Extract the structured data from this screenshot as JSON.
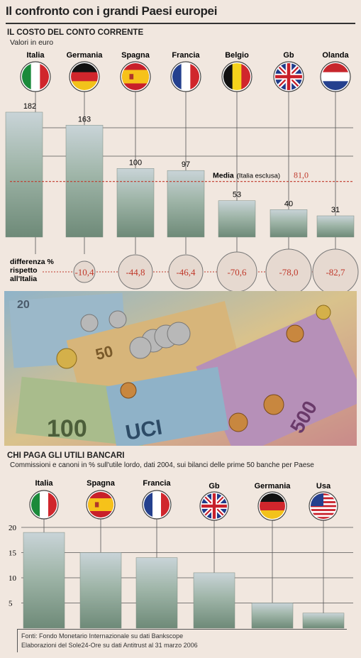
{
  "title": "Il confronto con i grandi Paesi europei",
  "section1": {
    "title": "IL COSTO DEL CONTO CORRENTE",
    "subtitle": "Valori in euro",
    "diff_label": "differenza % rispetto all'Italia",
    "media_label": "Media",
    "media_note": "(Italia esclusa)",
    "media_value": "81,0"
  },
  "section2": {
    "title": "CHI PAGA GLI UTILI BANCARI",
    "subtitle": "Commissioni e canoni in % sull'utile lordo, dati 2004, sui bilanci delle prime 50 banche per Paese"
  },
  "sources": {
    "line1": "Fonti: Fondo Monetario Internazionale su dati Bankscope",
    "line2": "Elaborazioni del Sole24-Ore su dati Antitrust al 31 marzo 2006"
  },
  "colors": {
    "accent": "#c0392b",
    "bar_top": "#c9d4d8",
    "bar_bottom": "#6e8a78"
  },
  "chart_data": [
    {
      "type": "bar",
      "title": "IL COSTO DEL CONTO CORRENTE",
      "subtitle": "Valori in euro",
      "categories": [
        "Italia",
        "Germania",
        "Spagna",
        "Francia",
        "Belgio",
        "Gb",
        "Olanda"
      ],
      "values": [
        182,
        163,
        100,
        97,
        53,
        40,
        31
      ],
      "value_labels": [
        "182",
        "163",
        "100",
        "97",
        "53",
        "40",
        "31"
      ],
      "diff_pct": [
        "",
        "-10,4",
        "-44,8",
        "-46,4",
        "-70,6",
        "-78,0",
        "-82,7"
      ],
      "reference_line": {
        "label": "Media",
        "note": "(Italia esclusa)",
        "value": 81.0,
        "value_label": "81,0"
      },
      "flags": [
        "italy-flag",
        "germany-flag",
        "spain-flag",
        "france-flag",
        "belgium-flag",
        "uk-flag",
        "netherlands-flag"
      ],
      "ylim": [
        0,
        200
      ],
      "grid": true
    },
    {
      "type": "bar",
      "title": "CHI PAGA GLI UTILI BANCARI",
      "subtitle": "Commissioni e canoni in % sull'utile lordo, dati 2004, sui bilanci delle prime 50 banche per Paese",
      "categories": [
        "Italia",
        "Spagna",
        "Francia",
        "Gb",
        "Germania",
        "Usa"
      ],
      "values": [
        19,
        15,
        14,
        11,
        5,
        3
      ],
      "yticks": [
        "20",
        "15",
        "10",
        "5"
      ],
      "flags": [
        "italy-flag",
        "spain-flag",
        "france-flag",
        "uk-flag",
        "germany-flag",
        "usa-flag"
      ],
      "ylim": [
        0,
        22
      ],
      "grid": true
    }
  ]
}
